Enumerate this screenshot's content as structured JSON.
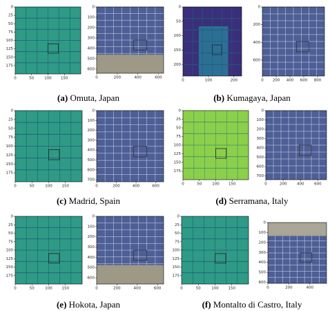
{
  "panels": [
    {
      "letter": "(a)",
      "name": "Omuta, Japan",
      "left": {
        "xlim": [
          0,
          200
        ],
        "ylim": [
          0,
          200
        ],
        "xticks": [
          0,
          50,
          100,
          150
        ],
        "yticks": [
          0,
          25,
          50,
          75,
          100,
          125,
          150,
          175
        ]
      },
      "right": {
        "xlim": [
          0,
          650
        ],
        "ylim": [
          0,
          640
        ],
        "xticks": [
          0,
          200,
          400,
          600
        ],
        "yticks": [
          0,
          100,
          200,
          300,
          400,
          500,
          600
        ]
      }
    },
    {
      "letter": "(b)",
      "name": "Kumagaya, Japan",
      "left": {
        "xlim": [
          0,
          230
        ],
        "ylim": [
          0,
          240
        ],
        "xticks": [
          0,
          100,
          200
        ],
        "yticks": [
          0,
          50,
          100,
          150,
          200
        ]
      },
      "right": {
        "xlim": [
          0,
          900
        ],
        "ylim": [
          0,
          780
        ],
        "xticks": [
          0,
          200,
          400,
          600,
          800
        ],
        "yticks": [
          0,
          200,
          400,
          600
        ]
      }
    },
    {
      "letter": "(c)",
      "name": "Madrid, Spain",
      "left": {
        "xlim": [
          0,
          200
        ],
        "ylim": [
          0,
          200
        ],
        "xticks": [
          0,
          50,
          100,
          150
        ],
        "yticks": [
          0,
          25,
          50,
          75,
          100,
          125,
          150,
          175
        ]
      },
      "right": {
        "xlim": [
          0,
          680
        ],
        "ylim": [
          0,
          720
        ],
        "xticks": [
          0,
          200,
          400,
          600
        ],
        "yticks": [
          0,
          100,
          200,
          300,
          400,
          500,
          600,
          700
        ]
      }
    },
    {
      "letter": "(d)",
      "name": "Serramana, Italy",
      "left": {
        "xlim": [
          0,
          200
        ],
        "ylim": [
          0,
          200
        ],
        "xticks": [
          0,
          50,
          100,
          150
        ],
        "yticks": [
          0,
          25,
          50,
          75,
          100,
          125,
          150,
          175
        ]
      },
      "right": {
        "xlim": [
          0,
          700
        ],
        "ylim": [
          0,
          740
        ],
        "xticks": [
          0,
          200,
          400,
          600
        ],
        "yticks": [
          0,
          100,
          200,
          300,
          400,
          500,
          600,
          700
        ]
      }
    },
    {
      "letter": "(e)",
      "name": "Hokota, Japan",
      "left": {
        "xlim": [
          0,
          200
        ],
        "ylim": [
          0,
          200
        ],
        "xticks": [
          0,
          50,
          100,
          150
        ],
        "yticks": [
          0,
          25,
          50,
          75,
          100,
          125,
          150,
          175
        ]
      },
      "right": {
        "xlim": [
          0,
          660
        ],
        "ylim": [
          0,
          660
        ],
        "xticks": [
          0,
          200,
          400,
          600
        ],
        "yticks": [
          0,
          100,
          200,
          300,
          400,
          500,
          600
        ]
      }
    },
    {
      "letter": "(f)",
      "name": "Montalto di Castro, Italy",
      "left": {
        "xlim": [
          0,
          200
        ],
        "ylim": [
          0,
          200
        ],
        "xticks": [
          0,
          50,
          100,
          150
        ],
        "yticks": [
          0,
          25,
          50,
          75,
          100,
          125,
          150,
          175
        ]
      },
      "right": {
        "xlim": [
          0,
          560
        ],
        "ylim": [
          0,
          610
        ],
        "xticks": [
          0,
          200,
          400
        ],
        "yticks": [
          0,
          100,
          200,
          300,
          400,
          500,
          600
        ]
      }
    }
  ]
}
